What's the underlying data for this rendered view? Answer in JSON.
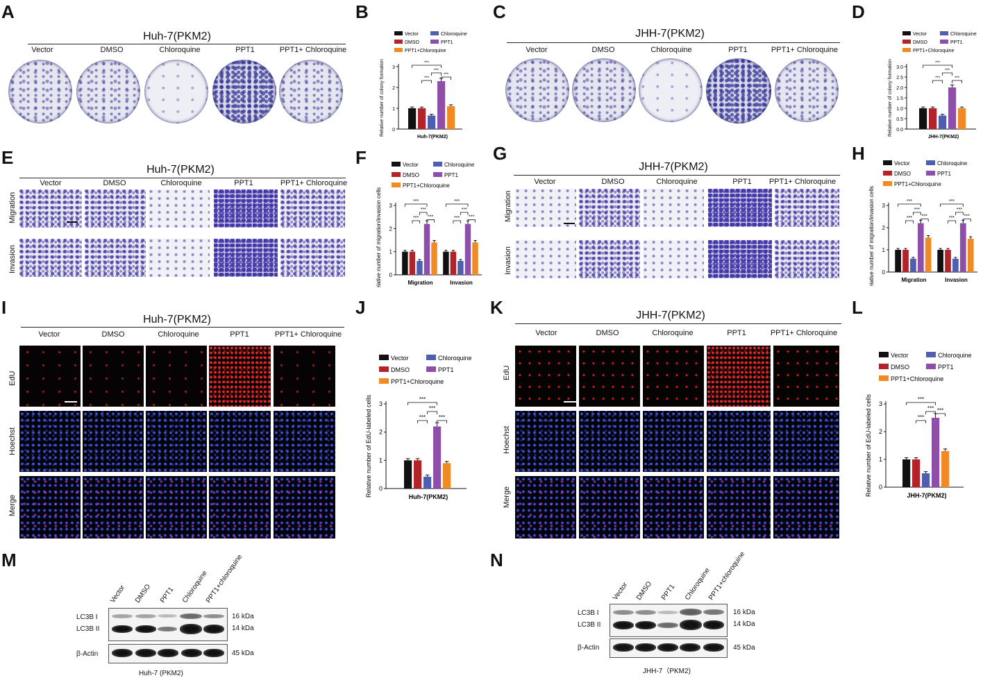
{
  "panel_letters": [
    "A",
    "B",
    "C",
    "D",
    "E",
    "F",
    "G",
    "H",
    "I",
    "J",
    "K",
    "L",
    "M",
    "N"
  ],
  "groups": {
    "huh7": "Huh-7(PKM2)",
    "jhh7": "JHH-7(PKM2)"
  },
  "conditions": [
    "Vector",
    "DMSO",
    "Chloroquine",
    "PPT1",
    "PPT1+ Chloroquine"
  ],
  "rows": {
    "migration": "Migration",
    "invasion": "Invasion",
    "edu": "EdU",
    "hoechst": "Hoechst",
    "merge": "Merge"
  },
  "legend": [
    "Vector",
    "Chloroquine",
    "DMSO",
    "PPT1",
    "PPT1+Chloroquine"
  ],
  "colors": {
    "Vector": "#111111",
    "DMSO": "#b3232a",
    "Chloroquine": "#4d5fae",
    "PPT1": "#8e4fa8",
    "PPT1+Chloroquine": "#f08a24"
  },
  "sig": "***",
  "chart_data": [
    {
      "id": "B",
      "type": "bar",
      "categories": [
        "Huh-7(PKM2)"
      ],
      "ylabel": "Relative number of colony formation",
      "xlabel": "Huh-7(PKM2)",
      "ylim": [
        0,
        3
      ],
      "yticks": [
        0,
        1,
        2,
        3
      ],
      "series": [
        {
          "name": "Vector",
          "values": [
            1.0
          ]
        },
        {
          "name": "DMSO",
          "values": [
            1.0
          ]
        },
        {
          "name": "Chloroquine",
          "values": [
            0.65
          ]
        },
        {
          "name": "PPT1",
          "values": [
            2.3
          ]
        },
        {
          "name": "PPT1+Chloroquine",
          "values": [
            1.1
          ]
        }
      ]
    },
    {
      "id": "D",
      "type": "bar",
      "categories": [
        "JHH-7(PKM2)"
      ],
      "ylabel": "Relative number of colony formation",
      "xlabel": "JHH-7(PKM2)",
      "ylim": [
        0,
        3
      ],
      "yticks": [
        0.0,
        0.5,
        1.0,
        1.5,
        2.0,
        2.5,
        3.0
      ],
      "series": [
        {
          "name": "Vector",
          "values": [
            1.0
          ]
        },
        {
          "name": "DMSO",
          "values": [
            1.0
          ]
        },
        {
          "name": "Chloroquine",
          "values": [
            0.65
          ]
        },
        {
          "name": "PPT1",
          "values": [
            2.0
          ]
        },
        {
          "name": "PPT1+Chloroquine",
          "values": [
            1.0
          ]
        }
      ]
    },
    {
      "id": "F",
      "type": "bar",
      "categories": [
        "Migration",
        "Invasion"
      ],
      "ylabel": "Relative number of migration/invasion cells",
      "xlabel": "",
      "ylim": [
        0,
        3
      ],
      "yticks": [
        0,
        1,
        2,
        3
      ],
      "series": [
        {
          "name": "Vector",
          "values": [
            1.0,
            1.0
          ]
        },
        {
          "name": "DMSO",
          "values": [
            1.0,
            1.0
          ]
        },
        {
          "name": "Chloroquine",
          "values": [
            0.6,
            0.6
          ]
        },
        {
          "name": "PPT1",
          "values": [
            2.2,
            2.2
          ]
        },
        {
          "name": "PPT1+Chloroquine",
          "values": [
            1.4,
            1.4
          ]
        }
      ]
    },
    {
      "id": "H",
      "type": "bar",
      "categories": [
        "Migration",
        "Invasion"
      ],
      "ylabel": "Relative number of migration/invasion cells",
      "xlabel": "",
      "ylim": [
        0,
        3
      ],
      "yticks": [
        0,
        1,
        2,
        3
      ],
      "series": [
        {
          "name": "Vector",
          "values": [
            1.0,
            1.0
          ]
        },
        {
          "name": "DMSO",
          "values": [
            1.0,
            1.0
          ]
        },
        {
          "name": "Chloroquine",
          "values": [
            0.6,
            0.6
          ]
        },
        {
          "name": "PPT1",
          "values": [
            2.2,
            2.2
          ]
        },
        {
          "name": "PPT1+Chloroquine",
          "values": [
            1.55,
            1.5
          ]
        }
      ]
    },
    {
      "id": "J",
      "type": "bar",
      "categories": [
        "Huh-7(PKM2)"
      ],
      "ylabel": "Relative number of EdU-labeled cells",
      "xlabel": "Huh-7(PKM2)",
      "ylim": [
        0,
        3
      ],
      "yticks": [
        0,
        1,
        2,
        3
      ],
      "series": [
        {
          "name": "Vector",
          "values": [
            1.0
          ]
        },
        {
          "name": "DMSO",
          "values": [
            1.0
          ]
        },
        {
          "name": "Chloroquine",
          "values": [
            0.42
          ]
        },
        {
          "name": "PPT1",
          "values": [
            2.2
          ]
        },
        {
          "name": "PPT1+Chloroquine",
          "values": [
            0.9
          ]
        }
      ]
    },
    {
      "id": "L",
      "type": "bar",
      "categories": [
        "JHH-7(PKM2)"
      ],
      "ylabel": "Relative number of EdU-labeled cells",
      "xlabel": "JHH-7(PKM2)",
      "ylim": [
        0,
        3
      ],
      "yticks": [
        0,
        1,
        2,
        3
      ],
      "series": [
        {
          "name": "Vector",
          "values": [
            1.0
          ]
        },
        {
          "name": "DMSO",
          "values": [
            1.0
          ]
        },
        {
          "name": "Chloroquine",
          "values": [
            0.5
          ]
        },
        {
          "name": "PPT1",
          "values": [
            2.5
          ]
        },
        {
          "name": "PPT1+Chloroquine",
          "values": [
            1.3
          ]
        }
      ]
    }
  ],
  "blots": {
    "M": {
      "lanes": [
        "Vector",
        "DMSO",
        "PPT1",
        "Chloroquine",
        "PPT1+chloroquine"
      ],
      "caption": "Huh-7 (PKM2)"
    },
    "N": {
      "lanes": [
        "Vector",
        "DMSO",
        "PPT1",
        "Chloroquine",
        "PPT1+chloroquine"
      ],
      "caption": "JHH-7（PKM2)"
    },
    "proteins": {
      "lc3b1": "LC3B I",
      "lc3b2": "LC3B II",
      "actin": "β-Actin"
    },
    "kda": {
      "k16": "16 kDa",
      "k14": "14 kDa",
      "k45": "45 kDa"
    }
  }
}
